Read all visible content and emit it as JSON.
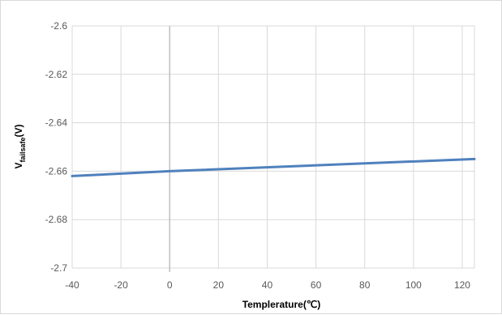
{
  "chart_data": {
    "type": "line",
    "title": "",
    "xlabel": "Templerature(℃)",
    "ylabel_main": "V",
    "ylabel_sub": "failsafe",
    "ylabel_tail": "(V)",
    "xlim": [
      -40,
      125
    ],
    "ylim": [
      -2.7,
      -2.6
    ],
    "x_ticks": [
      -40,
      -20,
      0,
      20,
      40,
      60,
      80,
      100,
      120
    ],
    "y_ticks": [
      -2.6,
      -2.62,
      -2.64,
      -2.66,
      -2.68,
      -2.7
    ],
    "x_tick_labels": [
      "-40",
      "-20",
      "0",
      "20",
      "40",
      "60",
      "80",
      "100",
      "120"
    ],
    "y_tick_labels": [
      "-2.6",
      "-2.62",
      "-2.64",
      "-2.66",
      "-2.68",
      "-2.7"
    ],
    "grid": true,
    "legend": "none",
    "series_color": "#4f81bd",
    "grid_color": "#d9d9d9",
    "zero_line_color": "#bfbfbf",
    "series": [
      {
        "x": [
          -40,
          0,
          125
        ],
        "values": [
          -2.662,
          -2.66,
          -2.655
        ]
      }
    ]
  }
}
